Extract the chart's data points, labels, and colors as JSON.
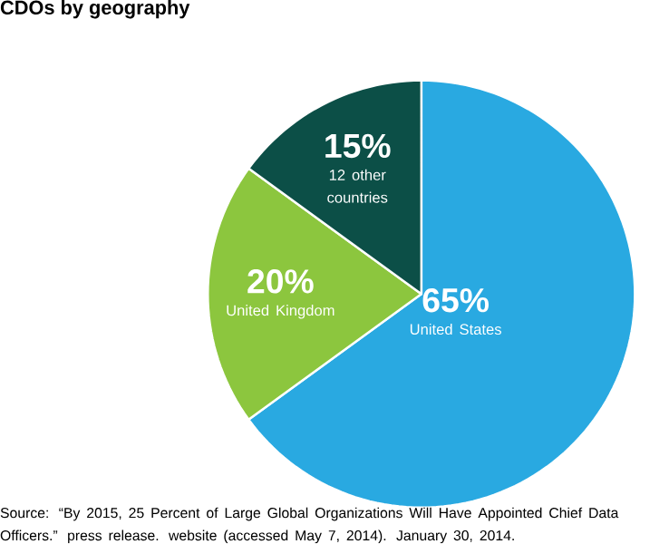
{
  "chart_data": {
    "type": "pie",
    "title": "CDOs by geography",
    "categories": [
      "United States",
      "United Kingdom",
      "12 other countries"
    ],
    "values": [
      65,
      20,
      15
    ],
    "colors": [
      "#29a9e1",
      "#8cc63e",
      "#0c4f47"
    ],
    "value_labels": [
      "65%",
      "20%",
      "15%"
    ],
    "annotations": [
      "Source: “By 2015, 25 Percent of Large Global Organizations Will Have Appointed Chief Data Officers.” press release. website (accessed May 7, 2014). January 30, 2014."
    ]
  }
}
